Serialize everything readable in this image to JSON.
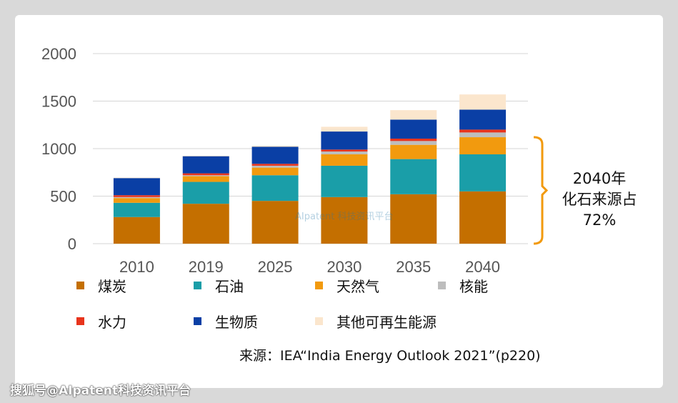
{
  "chart_data": {
    "type": "bar",
    "stacked": true,
    "categories": [
      "2010",
      "2019",
      "2025",
      "2030",
      "2035",
      "2040"
    ],
    "ylim": [
      0,
      2000
    ],
    "yticks": [
      0,
      500,
      1000,
      1500,
      2000
    ],
    "series": [
      {
        "name": "煤炭",
        "color": "#c46f00",
        "values": [
          280,
          420,
          450,
          490,
          520,
          550
        ]
      },
      {
        "name": "石油",
        "color": "#1a9ea8",
        "values": [
          150,
          230,
          270,
          330,
          370,
          390
        ]
      },
      {
        "name": "天然气",
        "color": "#f29a0e",
        "values": [
          50,
          60,
          80,
          120,
          150,
          180
        ]
      },
      {
        "name": "核能",
        "color": "#bdbdbd",
        "values": [
          10,
          10,
          20,
          30,
          40,
          50
        ]
      },
      {
        "name": "水力",
        "color": "#e8341c",
        "values": [
          20,
          20,
          20,
          20,
          25,
          30
        ]
      },
      {
        "name": "生物质",
        "color": "#0a3fa5",
        "values": [
          180,
          180,
          180,
          190,
          200,
          210
        ]
      },
      {
        "name": "其他可再生能源",
        "color": "#fbe6cd",
        "values": [
          5,
          5,
          10,
          50,
          100,
          160
        ]
      }
    ],
    "annotation": {
      "line1": "2040年",
      "line2": "化石来源占",
      "line3": "72%",
      "range": [
        0,
        1120
      ],
      "color": "#f29a0e"
    }
  },
  "source": "来源：IEA“India Energy Outlook 2021”(p220)",
  "watermark": "搜狐号@AIpatent科技资讯平台",
  "inner_watermark": "AIpatent 科技资讯平台"
}
